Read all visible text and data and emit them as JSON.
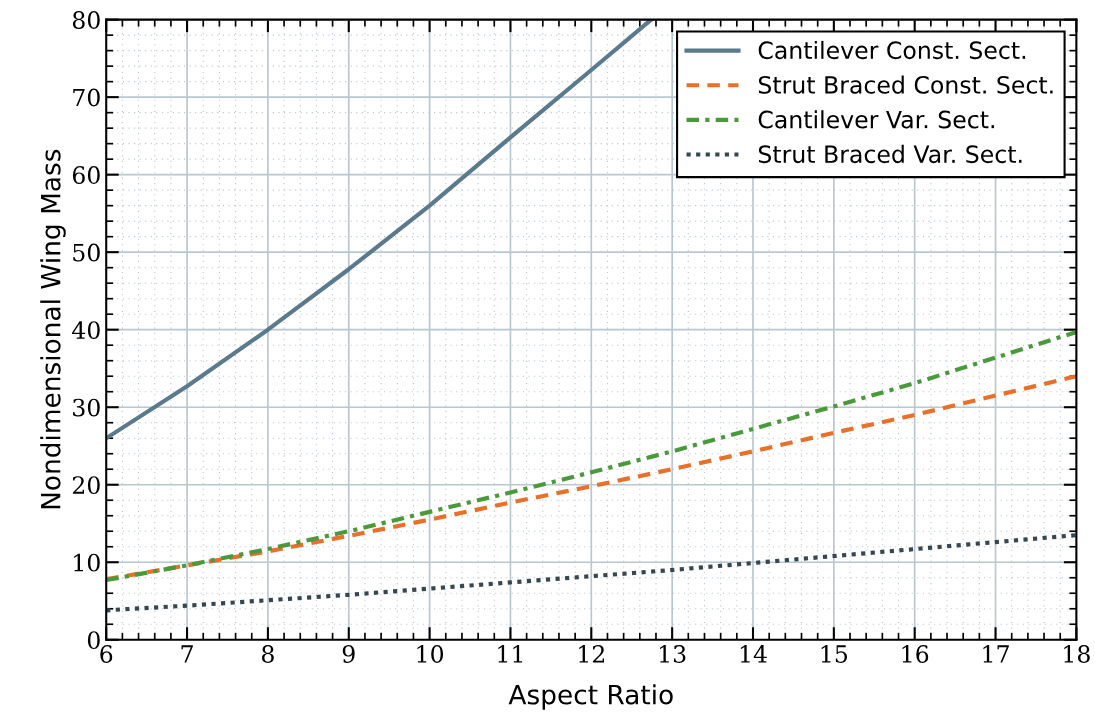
{
  "chart_data": {
    "type": "line",
    "xlabel": "Aspect Ratio",
    "ylabel": "Nondimensional Wing Mass",
    "xlim": [
      6,
      18
    ],
    "ylim": [
      0,
      80
    ],
    "xticks": [
      6,
      7,
      8,
      9,
      10,
      11,
      12,
      13,
      14,
      15,
      16,
      17,
      18
    ],
    "yticks": [
      0,
      10,
      20,
      30,
      40,
      50,
      60,
      70,
      80
    ],
    "grid": true,
    "legend": "top right",
    "marker": "none",
    "series": [
      {
        "name": "Cantilever Const. Sect.",
        "color": "#5b7a8c",
        "line_style": "solid",
        "x": [
          6,
          7,
          8,
          9,
          10,
          11,
          12,
          12.74
        ],
        "values": [
          26,
          32.7,
          40,
          47.8,
          56,
          64.8,
          73.5,
          80
        ]
      },
      {
        "name": "Strut Braced Const. Sect.",
        "color": "#e8702a",
        "line_style": "dashed",
        "x": [
          6,
          7,
          8,
          9,
          10,
          11,
          12,
          13,
          14,
          15,
          16,
          17,
          18
        ],
        "values": [
          7.8,
          9.6,
          11.4,
          13.4,
          15.5,
          17.7,
          19.8,
          22,
          24.3,
          26.7,
          29,
          31.5,
          34
        ]
      },
      {
        "name": "Cantilever Var. Sect.",
        "color": "#4a9a3c",
        "line_style": "dashdot",
        "x": [
          6,
          7,
          8,
          9,
          10,
          11,
          12,
          13,
          14,
          15,
          16,
          17,
          18
        ],
        "values": [
          7.7,
          9.6,
          11.7,
          14,
          16.5,
          19,
          21.6,
          24.3,
          27.2,
          30.1,
          33.1,
          36.4,
          39.7
        ]
      },
      {
        "name": "Strut Braced Var. Sect.",
        "color": "#37474f",
        "line_style": "dotted",
        "x": [
          6,
          7,
          8,
          9,
          10,
          11,
          12,
          13,
          14,
          15,
          16,
          17,
          18
        ],
        "values": [
          3.8,
          4.4,
          5.1,
          5.8,
          6.6,
          7.4,
          8.2,
          9,
          9.9,
          10.8,
          11.7,
          12.6,
          13.5
        ]
      }
    ]
  }
}
